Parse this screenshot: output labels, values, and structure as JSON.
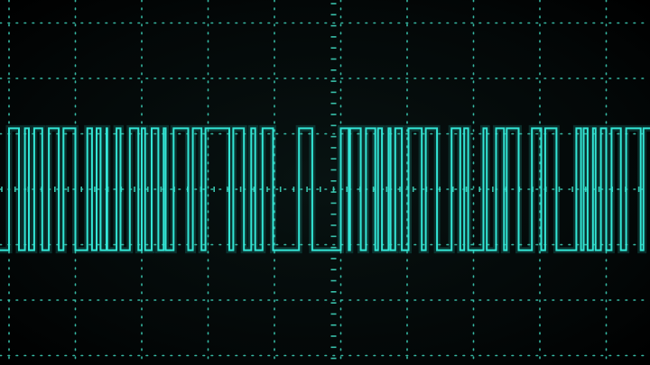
{
  "display": {
    "grid_divisions_x": 10,
    "grid_divisions_y": 6,
    "grid_color": "#3fd6bd",
    "trace_color": "#33e6d6",
    "background_color": "#030707"
  },
  "signal": {
    "type": "digital-pulse-train",
    "level_high": 1,
    "level_low": 0,
    "level_high_div": -1.1,
    "level_low_div": 1.1,
    "transitions_div": [
      0.0,
      0.15,
      0.24,
      0.3,
      0.38,
      0.5,
      0.6,
      0.75,
      0.82,
      1.0,
      1.18,
      1.25,
      1.32,
      1.38,
      1.47,
      1.48,
      1.62,
      1.68,
      1.82,
      1.95,
      2.0,
      2.05,
      2.15,
      2.25,
      2.33,
      2.36,
      2.48,
      2.7,
      2.77,
      2.9,
      2.96,
      3.32,
      3.38,
      3.54,
      3.65,
      3.71,
      3.82,
      3.98,
      4.37,
      4.57,
      5.0,
      5.12,
      5.14,
      5.3,
      5.38,
      5.52,
      5.56,
      5.62,
      5.72,
      5.75,
      5.82,
      5.92,
      6.02,
      6.22,
      6.28,
      6.45,
      6.67,
      6.8,
      6.86,
      6.92,
      7.15,
      7.2,
      7.34,
      7.46,
      7.5,
      7.68,
      7.88,
      8.02,
      8.08,
      8.25,
      8.55,
      8.62,
      8.66,
      8.72,
      8.8,
      8.84,
      8.92,
      9.0,
      9.08,
      9.22,
      9.3,
      9.52,
      9.56,
      9.72
    ]
  }
}
